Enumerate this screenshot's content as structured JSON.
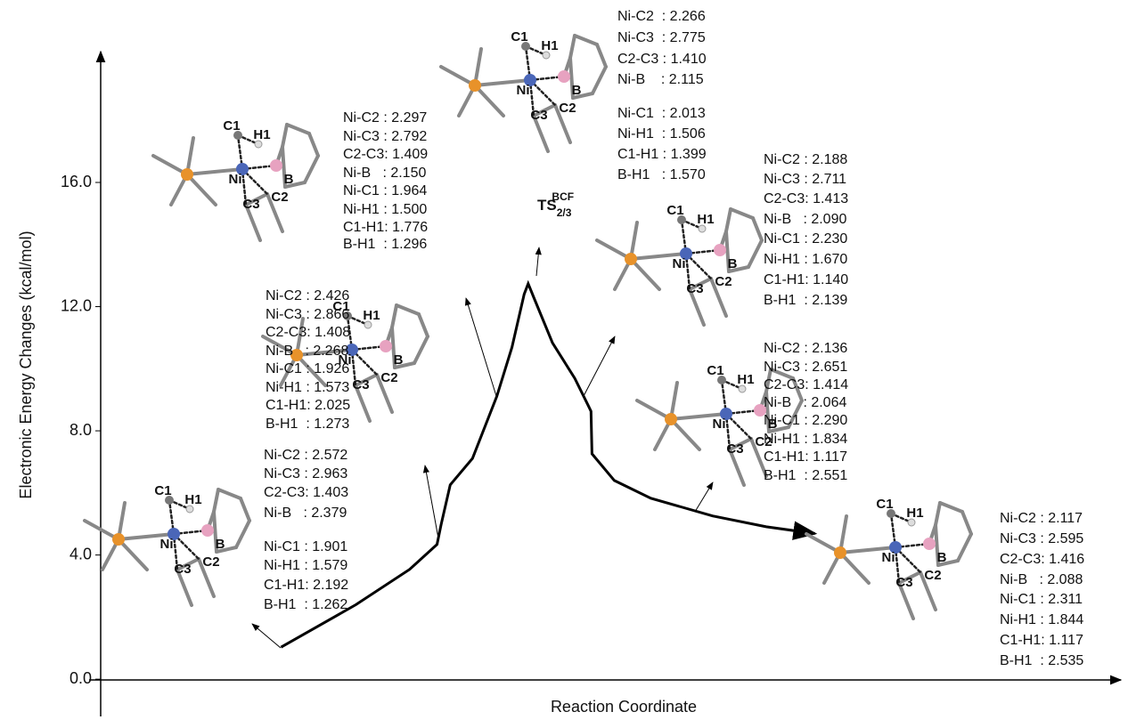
{
  "chart_data": {
    "type": "line",
    "ylabel": "Electronic Energy Changes (kcal/mol)",
    "xlabel": "Reaction Coordinate",
    "xlim": [
      0,
      100
    ],
    "ylim": [
      -1.2,
      20.3
    ],
    "yticks": [
      {
        "value": 0,
        "label": "0.0"
      },
      {
        "value": 4,
        "label": "4.0"
      },
      {
        "value": 8,
        "label": "8.0"
      },
      {
        "value": 12,
        "label": "12.0"
      },
      {
        "value": 16,
        "label": "16.0"
      }
    ],
    "color": "#000000",
    "x": [
      17.8,
      25.2,
      30.5,
      33.2,
      33.6,
      34.5,
      36.7,
      39.1,
      40.6,
      41.8,
      42.2,
      42.8,
      44.6,
      46.8,
      48.1,
      48.4,
      48.5,
      50.7,
      54.3,
      60.4,
      65.7,
      70.5
    ],
    "values": [
      1.03,
      2.4,
      3.54,
      4.34,
      4.97,
      6.26,
      7.11,
      9.11,
      10.69,
      12.4,
      12.74,
      12.26,
      10.83,
      9.69,
      8.83,
      8.63,
      7.26,
      6.4,
      5.83,
      5.26,
      4.91,
      4.69
    ],
    "ts_label": {
      "main": "TS",
      "sub": "2/3",
      "sup": "BCF"
    },
    "structures": [
      {
        "atoms": [
          "C1",
          "H1",
          "Ni",
          "B",
          "C2",
          "C3"
        ],
        "lines": [
          "Ni-C2 : 2.572",
          "Ni-C3 : 2.963",
          "C2-C3: 1.403",
          "Ni-B   : 2.379",
          "Ni-C1 : 1.901",
          "Ni-H1 : 1.579",
          "C1-H1: 2.192",
          "B-H1  : 1.262"
        ]
      },
      {
        "atoms": [
          "C1",
          "H1",
          "Ni",
          "B",
          "C2",
          "C3"
        ],
        "lines": [
          "Ni-C2 : 2.426",
          "Ni-C3 : 2.866",
          "C2-C3: 1.408",
          "Ni-B   : 2.268",
          "Ni-C1 : 1.926",
          "Ni-H1 : 1.573",
          "C1-H1: 2.025",
          "B-H1  : 1.273"
        ]
      },
      {
        "atoms": [
          "C1",
          "H1",
          "Ni",
          "B",
          "C2",
          "C3"
        ],
        "lines": [
          "Ni-C2 : 2.297",
          "Ni-C3 : 2.792",
          "C2-C3: 1.409",
          "Ni-B   : 2.150",
          "Ni-C1 : 1.964",
          "Ni-H1 : 1.500",
          "C1-H1: 1.776",
          "B-H1  : 1.296"
        ]
      },
      {
        "atoms": [
          "C1",
          "H1",
          "Ni",
          "B",
          "C2",
          "C3"
        ],
        "lines": [
          "Ni-C2  : 2.266",
          "Ni-C3  : 2.775",
          "C2-C3 : 1.410",
          "Ni-B    : 2.115",
          "Ni-C1  : 2.013",
          "Ni-H1  : 1.506",
          "C1-H1 : 1.399",
          "B-H1   : 1.570"
        ]
      },
      {
        "atoms": [
          "C1",
          "H1",
          "Ni",
          "B",
          "C2",
          "C3"
        ],
        "lines": [
          "Ni-C2 : 2.188",
          "Ni-C3 : 2.711",
          "C2-C3: 1.413",
          "Ni-B   : 2.090",
          "Ni-C1 : 2.230",
          "Ni-H1 : 1.670",
          "C1-H1: 1.140",
          "B-H1  : 2.139"
        ]
      },
      {
        "atoms": [
          "C1",
          "H1",
          "Ni",
          "B",
          "C2",
          "C3"
        ],
        "lines": [
          "Ni-C2 : 2.136",
          "Ni-C3 : 2.651",
          "C2-C3: 1.414",
          "Ni-B   : 2.064",
          "Ni-C1 : 2.290",
          "Ni-H1 : 1.834",
          "C1-H1: 1.117",
          "B-H1  : 2.551"
        ]
      },
      {
        "atoms": [
          "C1",
          "H1",
          "Ni",
          "B",
          "C2",
          "C3"
        ],
        "lines": [
          "Ni-C2 : 2.117",
          "Ni-C3 : 2.595",
          "C2-C3: 1.416",
          "Ni-B   : 2.088",
          "Ni-C1 : 2.311",
          "Ni-H1 : 1.844",
          "C1-H1: 1.117",
          "B-H1  : 2.535"
        ]
      }
    ]
  }
}
